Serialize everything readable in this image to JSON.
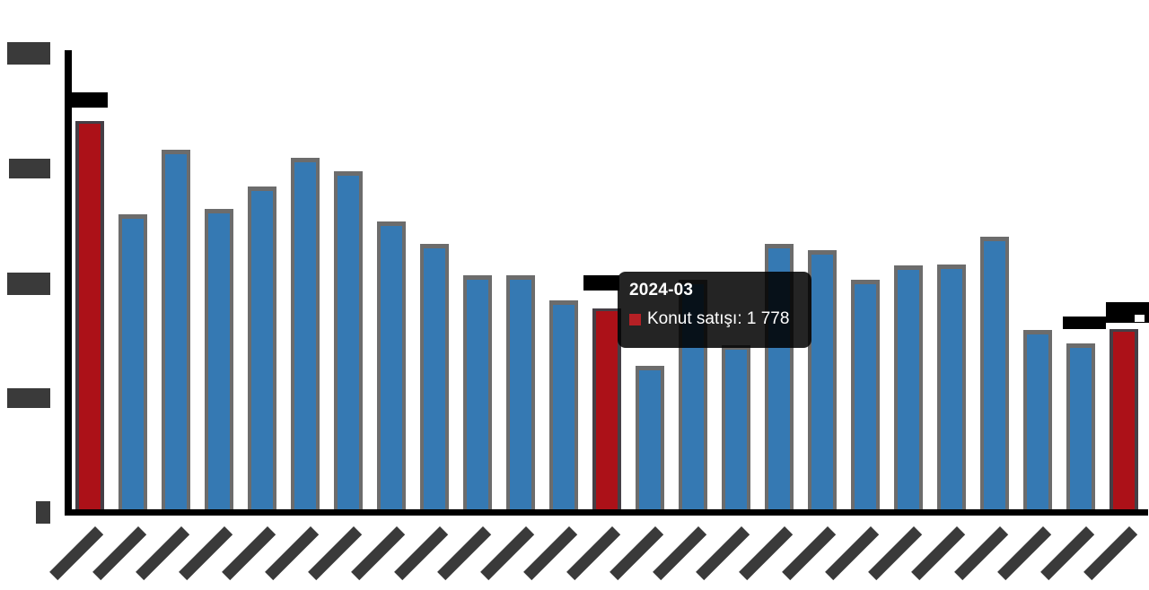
{
  "page": {
    "background": "#ffffff",
    "description": "Bar chart of housing sales by month; axis tick labels and annotations are blacked out (redacted); a hover tooltip is visible"
  },
  "tooltip": {
    "title": "2024-03",
    "series_label": "Konut satışı",
    "value_display": "1 778",
    "body_text": "Konut satışı: 1 778",
    "marker_color": "#B52025",
    "text_color": "#ffffff"
  },
  "colors": {
    "bar_blue": "#3579B3",
    "bar_blue_border": "#6C6C6C",
    "bar_red": "#AC1118",
    "bar_red_border": "#453F46",
    "axis": "#000000",
    "redaction_gray": "#3A3A3A",
    "annotation_black": "#000000",
    "tooltip_background": "rgba(0,0,0,0.86)"
  },
  "chart_data": {
    "type": "bar",
    "title": "",
    "xlabel": "",
    "ylabel": "",
    "grid": false,
    "legend_position": "none",
    "ylim": [
      0,
      4000
    ],
    "y_ticks": {
      "values": [
        0,
        1000,
        2000,
        3000,
        4000
      ],
      "labels_redacted": true
    },
    "x_ticks": {
      "count": 25,
      "labels_redacted": true,
      "label_rotation_deg": -45,
      "known_labels": {
        "12": "2024-03"
      }
    },
    "series": [
      {
        "name": "Konut satışı",
        "values": [
          3410,
          2600,
          3160,
          2645,
          2840,
          3090,
          2970,
          2535,
          2340,
          2065,
          2065,
          1850,
          1778,
          1280,
          2030,
          1460,
          2340,
          2285,
          2025,
          2150,
          2160,
          2400,
          1590,
          1475,
          1595
        ]
      }
    ],
    "highlight_indices": [
      0,
      12,
      24
    ],
    "highlighted_point": {
      "index": 12,
      "label": "2024-03",
      "value": 1778,
      "value_display": "1 778"
    }
  }
}
